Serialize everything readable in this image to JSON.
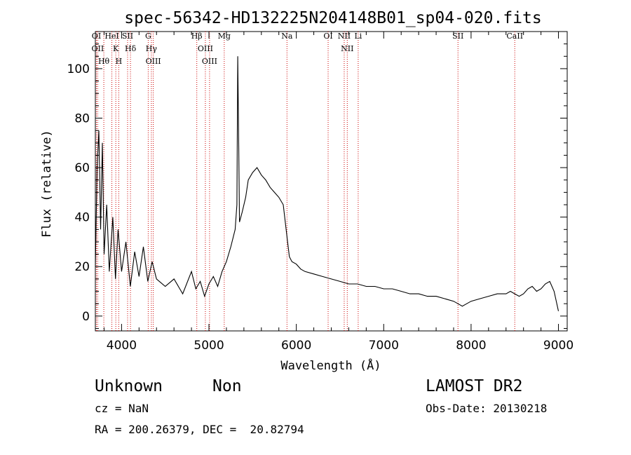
{
  "chart_data": {
    "type": "line",
    "title": "spec-56342-HD132225N204148B01_sp04-020.fits",
    "xlabel": "Wavelength (Å)",
    "ylabel": "Flux (relative)",
    "xlim": [
      3700,
      9100
    ],
    "ylim": [
      -6,
      115
    ],
    "xticks": [
      4000,
      5000,
      6000,
      7000,
      8000,
      9000
    ],
    "yticks": [
      0,
      20,
      40,
      60,
      80,
      100
    ],
    "grid": false,
    "series": [
      {
        "x": [
          3700,
          3720,
          3740,
          3760,
          3780,
          3800,
          3830,
          3860,
          3900,
          3930,
          3960,
          4000,
          4050,
          4100,
          4150,
          4200,
          4250,
          4300,
          4350,
          4400,
          4500,
          4600,
          4700,
          4800,
          4850,
          4900,
          4950,
          5000,
          5050,
          5100,
          5150,
          5200,
          5250,
          5300,
          5320,
          5330,
          5340,
          5350,
          5380,
          5420,
          5450,
          5500,
          5550,
          5600,
          5650,
          5700,
          5750,
          5800,
          5850,
          5900,
          5920,
          5950,
          6000,
          6050,
          6100,
          6200,
          6300,
          6400,
          6500,
          6600,
          6700,
          6800,
          6900,
          7000,
          7100,
          7200,
          7300,
          7400,
          7500,
          7600,
          7700,
          7800,
          7850,
          7900,
          7950,
          8000,
          8100,
          8200,
          8300,
          8400,
          8450,
          8500,
          8550,
          8600,
          8650,
          8700,
          8750,
          8800,
          8850,
          8900,
          8950,
          9000
        ],
        "y": [
          20,
          60,
          75,
          35,
          70,
          25,
          45,
          18,
          40,
          15,
          35,
          18,
          30,
          12,
          26,
          16,
          28,
          14,
          22,
          15,
          12,
          15,
          9,
          18,
          11,
          14,
          8,
          13,
          16,
          12,
          18,
          22,
          28,
          35,
          45,
          105,
          72,
          38,
          42,
          48,
          55,
          58,
          60,
          57,
          55,
          52,
          50,
          48,
          45,
          30,
          24,
          22,
          21,
          19,
          18,
          17,
          16,
          15,
          14,
          13,
          13,
          12,
          12,
          11,
          11,
          10,
          9,
          9,
          8,
          8,
          7,
          6,
          5,
          4,
          5,
          6,
          7,
          8,
          9,
          9,
          10,
          9,
          8,
          9,
          11,
          12,
          10,
          11,
          13,
          14,
          10,
          2
        ]
      }
    ],
    "lines": [
      {
        "name": "Hθ",
        "x": 3797
      },
      {
        "name": "OII",
        "x": 3727
      },
      {
        "name": "OI",
        "x": 3712
      },
      {
        "name": "H",
        "x": 3968
      },
      {
        "name": "K",
        "x": 3934
      },
      {
        "name": "HeI",
        "x": 3889
      },
      {
        "name": "Hδ",
        "x": 4102
      },
      {
        "name": "SII",
        "x": 4069
      },
      {
        "name": "G",
        "x": 4305
      },
      {
        "name": "OIII",
        "x": 4363
      },
      {
        "name": "Hγ",
        "x": 4341
      },
      {
        "name": "Hβ",
        "x": 4861
      },
      {
        "name": "OIII",
        "x": 4959
      },
      {
        "name": "OIII",
        "x": 5007
      },
      {
        "name": "Mg",
        "x": 5175
      },
      {
        "name": "Na",
        "x": 5893
      },
      {
        "name": "OI",
        "x": 6364
      },
      {
        "name": "NII",
        "x": 6583
      },
      {
        "name": "NII",
        "x": 6548
      },
      {
        "name": "Li",
        "x": 6708
      },
      {
        "name": "SII",
        "x": 7850
      },
      {
        "name": "CaII",
        "x": 8500
      }
    ]
  },
  "footer": {
    "object_name": "Unknown",
    "object_class": "Non",
    "cz": "cz = NaN",
    "radec": "RA = 200.26379, DEC =  20.82794",
    "survey": "LAMOST DR2",
    "obs_date": "Obs-Date: 20130218"
  },
  "colors": {
    "spectrum": "#000000",
    "line_markers": "#cc0000",
    "axes": "#000000"
  }
}
